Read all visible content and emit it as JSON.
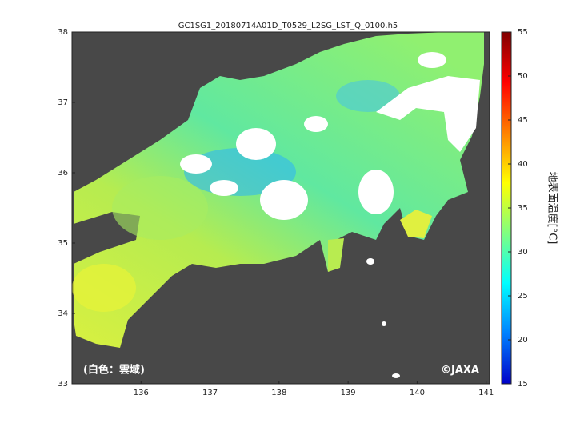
{
  "title": "GC1SG1_20180714A01D_T0529_L2SG_LST_Q_0100.h5",
  "map": {
    "xlim": [
      135,
      141.05
    ],
    "ylim": [
      33,
      38
    ],
    "xticks": [
      136,
      137,
      138,
      139,
      140,
      141
    ],
    "yticks": [
      33,
      34,
      35,
      36,
      37,
      38
    ]
  },
  "colorbar": {
    "label": "地表面温度[°C]",
    "lim": [
      15,
      55
    ],
    "ticks": [
      15,
      20,
      25,
      30,
      35,
      40,
      45,
      50,
      55
    ],
    "colors": [
      "#0000c8",
      "#0080ff",
      "#00ffff",
      "#80ff80",
      "#ffff00",
      "#ff8000",
      "#ff0000",
      "#800000"
    ]
  },
  "annotations": {
    "cloud_note": "(白色：雲域)",
    "credit": "©JAXA"
  }
}
